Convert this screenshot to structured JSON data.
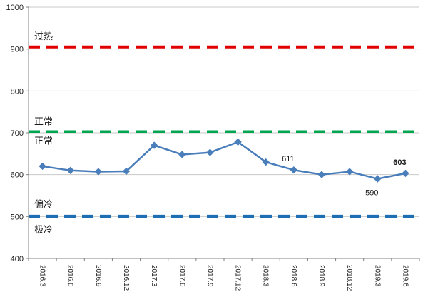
{
  "chart_data": {
    "type": "line",
    "title": "",
    "categories": [
      "2016.3",
      "2016.6",
      "2016.9",
      "2016.12",
      "2017.3",
      "2017.6",
      "2017.9",
      "2017.12",
      "2018.3",
      "2018.6",
      "2018.9",
      "2018.12",
      "2019.3",
      "2019.6"
    ],
    "series": [
      {
        "name": "index-series",
        "color": "#4A7EBB",
        "marker": "diamond",
        "values": [
          620,
          610,
          607,
          608,
          670,
          648,
          653,
          678,
          630,
          611,
          600,
          607,
          590,
          603
        ]
      }
    ],
    "ylim": [
      400,
      1000
    ],
    "yticks": [
      400,
      500,
      600,
      700,
      800,
      900,
      1000
    ],
    "grid": "horizontal",
    "legend": "none",
    "reference_lines": [
      {
        "value": 905,
        "color": "#E00000",
        "style": "dashed"
      },
      {
        "value": 703,
        "color": "#00A550",
        "style": "dashed"
      },
      {
        "value": 500,
        "color": "#1E6EB4",
        "style": "dashed"
      }
    ],
    "zone_labels": [
      {
        "text": "过热",
        "value": 932
      },
      {
        "text": "正常",
        "value": 728
      },
      {
        "text": "正常",
        "value": 682
      },
      {
        "text": "偏冷",
        "value": 530
      },
      {
        "text": "极冷",
        "value": 470
      }
    ],
    "point_labels": [
      {
        "category": "2018.6",
        "index": 9,
        "text": "611",
        "position": "above",
        "bold": false
      },
      {
        "category": "2019.3",
        "index": 12,
        "text": "590",
        "position": "below",
        "bold": false
      },
      {
        "category": "2019.6",
        "index": 13,
        "text": "603",
        "position": "above",
        "bold": true
      }
    ],
    "colors": {
      "gridline": "#C9C9C9",
      "axis": "#808080",
      "tick_label": "#1a1a1a",
      "zone_label": "#1a1a1a",
      "point_label": "#1a1a1a"
    }
  }
}
